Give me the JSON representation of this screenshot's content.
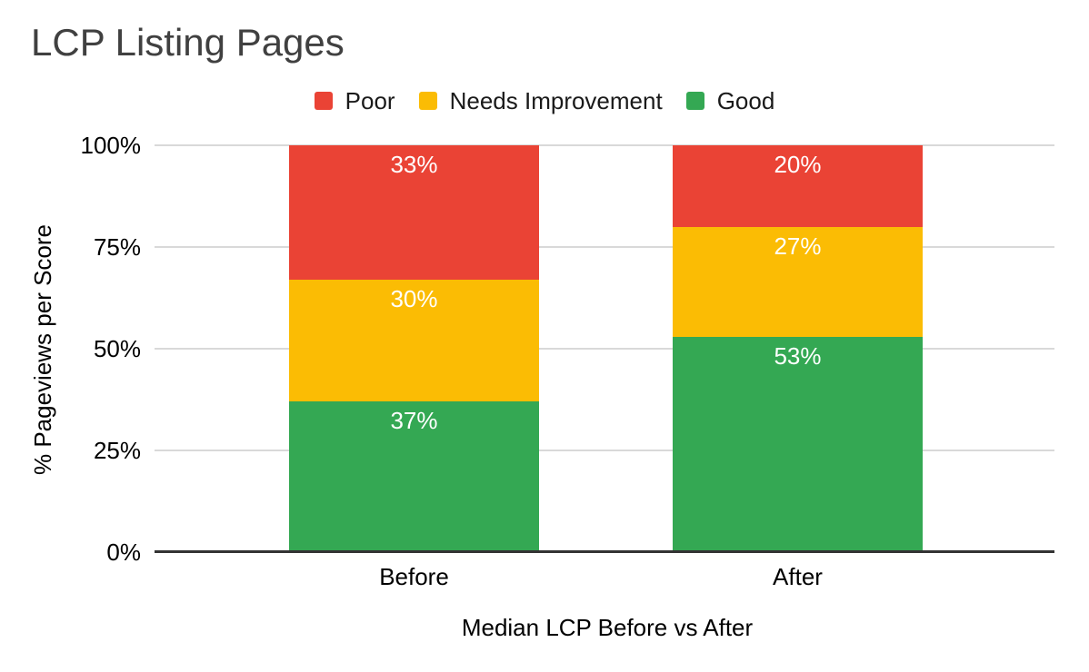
{
  "chart_data": {
    "type": "bar",
    "stacked": true,
    "title": "LCP Listing Pages",
    "xlabel": "Median LCP Before vs After",
    "ylabel": "% Pageviews per Score",
    "categories": [
      "Before",
      "After"
    ],
    "series": [
      {
        "name": "Poor",
        "color": "#EA4335",
        "values": [
          33,
          20
        ]
      },
      {
        "name": "Needs Improvement",
        "color": "#FBBC04",
        "values": [
          30,
          27
        ]
      },
      {
        "name": "Good",
        "color": "#34A853",
        "values": [
          37,
          53
        ]
      }
    ],
    "stack_order_bottom_to_top": [
      "Good",
      "Needs Improvement",
      "Poor"
    ],
    "y_ticks": [
      "0%",
      "25%",
      "50%",
      "75%",
      "100%"
    ],
    "ylim": [
      0,
      100
    ],
    "grid": true,
    "legend_position": "top",
    "data_label_format": "{v}%",
    "colors": {
      "grid": "#d9d9d9",
      "axis": "#333333",
      "title_text": "#404040",
      "axis_text": "#000000",
      "data_label_text": "#ffffff"
    }
  }
}
